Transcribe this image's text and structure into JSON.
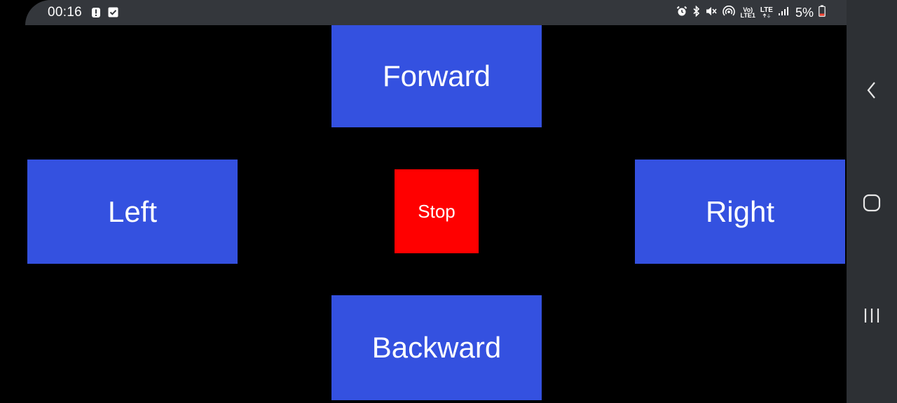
{
  "status_bar": {
    "time": "00:16",
    "network_type": "LTE",
    "volte_top": "Vo)",
    "volte_bottom": "LTE1",
    "battery_percent": "5%",
    "left_icons": [
      "alert-icon",
      "checkbox-icon"
    ],
    "right_icons": [
      "alarm-icon",
      "bluetooth-icon",
      "mute-icon",
      "hotspot-icon",
      "volte-icon",
      "lte-icon",
      "signal-icon",
      "battery-icon"
    ]
  },
  "controls": {
    "forward": "Forward",
    "left": "Left",
    "stop": "Stop",
    "right": "Right",
    "backward": "Backward"
  },
  "nav_bar": {
    "buttons": [
      "back-icon",
      "home-icon",
      "recents-icon"
    ]
  },
  "colors": {
    "background": "#000000",
    "button_blue": "#3451e0",
    "button_red": "#ff0000",
    "status_bar": "#34373c",
    "nav_bar": "#2d3034"
  }
}
